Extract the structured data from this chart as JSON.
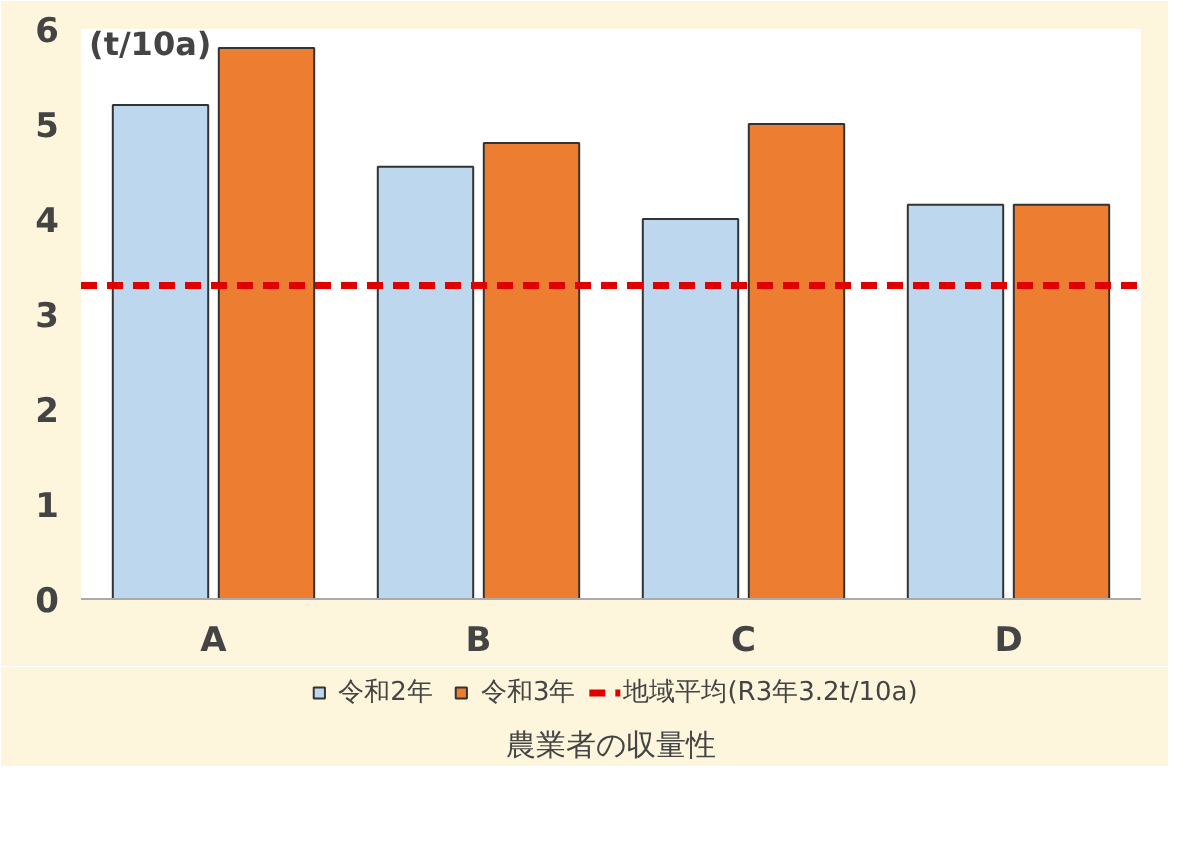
{
  "chart_data": {
    "type": "bar",
    "title": "農業者の収量性",
    "ylabel": "(t/10a)",
    "categories": [
      "A",
      "B",
      "C",
      "D"
    ],
    "series": [
      {
        "name": "令和2年",
        "color": "#bdd7ee",
        "values": [
          5.2,
          4.55,
          4.0,
          4.15
        ]
      },
      {
        "name": "令和3年",
        "color": "#ed7d31",
        "values": [
          5.8,
          4.8,
          5.0,
          4.15
        ]
      }
    ],
    "ylim": [
      0,
      6
    ],
    "yticks": [
      0,
      1,
      2,
      3,
      4,
      5,
      6
    ],
    "grid": false,
    "legend": "bottom",
    "ref_lines": [
      {
        "axis": "y",
        "value": 3.3,
        "label": "地域平均(R3年3.2t/10a)",
        "color": "#e00000",
        "line_style": "dashed"
      }
    ]
  }
}
